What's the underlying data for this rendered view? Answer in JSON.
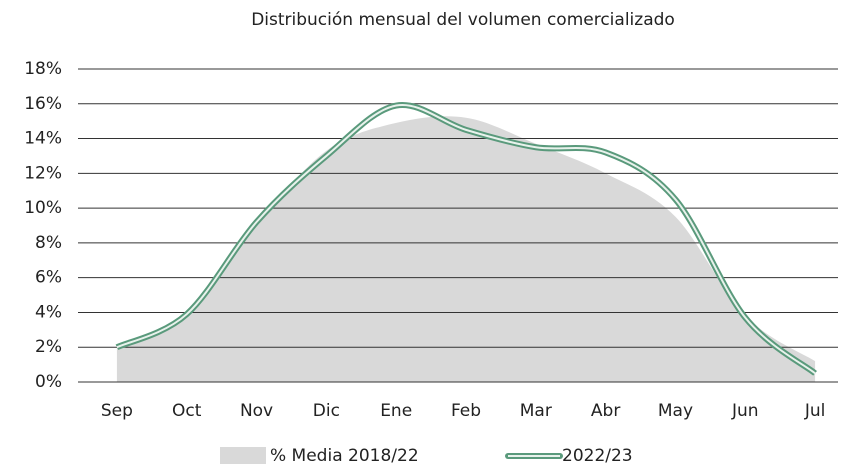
{
  "chart_data": {
    "type": "area-line",
    "title": "Distribución mensual del volumen comercializado",
    "categories": [
      "Sep",
      "Oct",
      "Nov",
      "Dic",
      "Ene",
      "Feb",
      "Mar",
      "Abr",
      "May",
      "Jun",
      "Jul"
    ],
    "series": [
      {
        "name": "% Media 2018/22",
        "color": "#d9d9d9",
        "kind": "area",
        "values": [
          2.0,
          3.9,
          9.0,
          13.3,
          14.9,
          15.2,
          13.7,
          12.0,
          9.5,
          3.8,
          1.2
        ]
      },
      {
        "name": "2022/23",
        "color": "#5a9a7c",
        "kind": "line",
        "values": [
          2.0,
          3.9,
          9.2,
          13.0,
          15.9,
          14.5,
          13.5,
          13.2,
          10.5,
          3.7,
          0.5
        ]
      }
    ],
    "ylim": [
      0,
      18
    ],
    "yticks": [
      {
        "value": 0,
        "label": "0%"
      },
      {
        "value": 2,
        "label": "2%"
      },
      {
        "value": 4,
        "label": "4%"
      },
      {
        "value": 6,
        "label": "6%"
      },
      {
        "value": 8,
        "label": "8%"
      },
      {
        "value": 10,
        "label": "10%"
      },
      {
        "value": 12,
        "label": "12%"
      },
      {
        "value": 14,
        "label": "14%"
      },
      {
        "value": 16,
        "label": "16%"
      },
      {
        "value": 18,
        "label": "18%"
      }
    ],
    "grid": true,
    "legend": "bottom"
  }
}
